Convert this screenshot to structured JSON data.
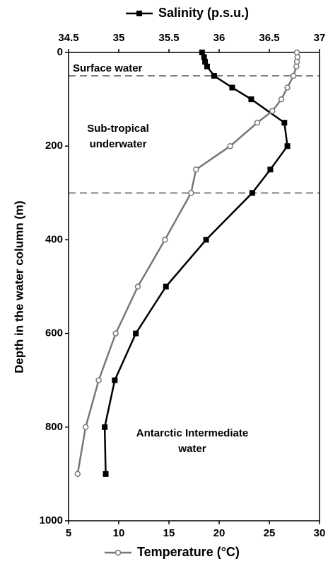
{
  "chart_data": {
    "type": "line",
    "y_label": "Depth in the water column (m)",
    "ylim": [
      0,
      1000
    ],
    "y_inverted": true,
    "yticks": [
      0,
      200,
      400,
      600,
      800,
      1000
    ],
    "xlim": [
      5,
      30
    ],
    "xticks": [
      5,
      10,
      15,
      20,
      25,
      30
    ],
    "x2lim": [
      34.5,
      37
    ],
    "x2ticks": [
      34.5,
      35,
      35.5,
      36,
      36.5,
      37
    ],
    "dividers": [
      50,
      300
    ],
    "annotations": [
      [
        "Surface water"
      ],
      [
        "Sub-tropical",
        "underwater"
      ],
      [
        "Antarctic Intermediate",
        "water"
      ]
    ],
    "series": [
      {
        "name": "Salinity (p.s.u.)",
        "axis": "x2",
        "color": "#000000",
        "marker": "square",
        "depth": [
          0,
          10,
          20,
          30,
          50,
          75,
          100,
          150,
          200,
          250,
          300,
          400,
          500,
          600,
          700,
          800,
          900
        ],
        "values": [
          35.83,
          35.85,
          35.86,
          35.88,
          35.95,
          36.13,
          36.32,
          36.65,
          36.68,
          36.51,
          36.33,
          35.87,
          35.47,
          35.17,
          34.96,
          34.86,
          34.87
        ]
      },
      {
        "name": "Temperature (°C)",
        "axis": "x",
        "color": "#777777",
        "marker": "circle",
        "depth": [
          0,
          10,
          20,
          30,
          50,
          75,
          100,
          125,
          150,
          200,
          250,
          300,
          400,
          500,
          600,
          700,
          800,
          900
        ],
        "values": [
          27.75,
          27.8,
          27.75,
          27.7,
          27.4,
          26.8,
          26.2,
          25.3,
          23.8,
          21.1,
          17.7,
          17.2,
          14.6,
          11.9,
          9.7,
          8.0,
          6.7,
          5.9
        ]
      }
    ]
  }
}
